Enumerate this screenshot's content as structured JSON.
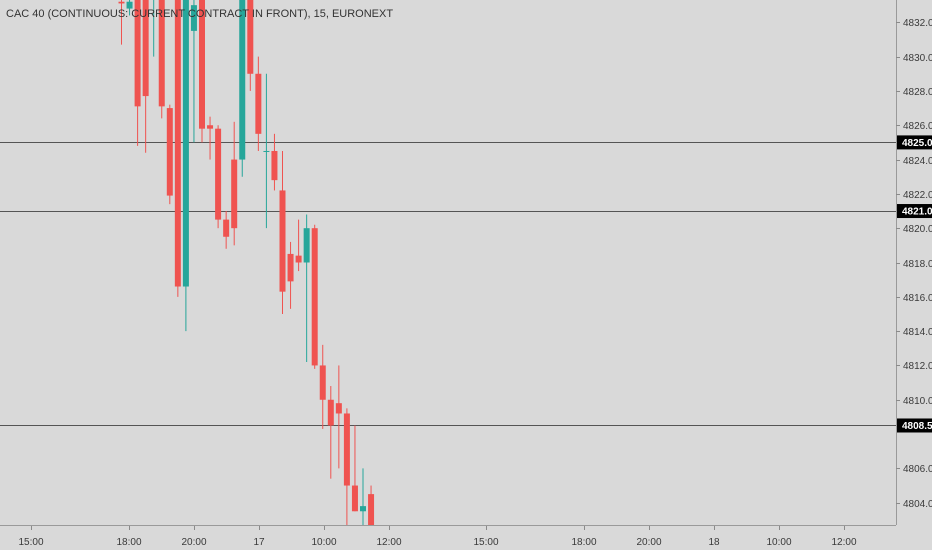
{
  "header": {
    "title": "CAC 40 (CONTINUOUS: CURRENT CONTRACT IN FRONT), 15, EURONEXT"
  },
  "colors": {
    "background": "#d9d9d9",
    "up": "#26a69a",
    "down": "#ef5350",
    "axis_text": "#3a3a3a",
    "hline": "#555555",
    "tag_bg": "#000000"
  },
  "chart_data": {
    "type": "candlestick",
    "title": "CAC 40 (CONTINUOUS: CURRENT CONTRACT IN FRONT), 15, EURONEXT",
    "xlabel": "",
    "ylabel": "",
    "ylim": [
      4802.7,
      4833.3
    ],
    "x_ticks": [
      "15:00",
      "18:00",
      "20:00",
      "17",
      "10:00",
      "12:00",
      "15:00",
      "18:00",
      "20:00",
      "18",
      "10:00",
      "12:00"
    ],
    "y_ticks": [
      4832.0,
      4830.0,
      4828.0,
      4826.0,
      4824.0,
      4822.0,
      4820.0,
      4818.0,
      4816.0,
      4814.0,
      4812.0,
      4810.0,
      4806.0,
      4804.0
    ],
    "horizontal_lines": [
      4825.0,
      4821.0,
      4808.5
    ],
    "price_tags": [
      "4825.0",
      "4821.0",
      "4808.5"
    ],
    "candles": [
      {
        "o": 4833.2,
        "h": 4833.5,
        "l": 4830.7,
        "c": 4833.1
      },
      {
        "o": 4832.8,
        "h": 4833.5,
        "l": 4832.4,
        "c": 4833.2
      },
      {
        "o": 4834.0,
        "h": 4835.0,
        "l": 4824.8,
        "c": 4827.1
      },
      {
        "o": 4834.0,
        "h": 4835.0,
        "l": 4824.4,
        "c": 4827.7
      },
      {
        "o": 4834.0,
        "h": 4835.0,
        "l": 4830.0,
        "c": 4834.0
      },
      {
        "o": 4834.0,
        "h": 4835.0,
        "l": 4826.4,
        "c": 4827.1
      },
      {
        "o": 4827.0,
        "h": 4827.2,
        "l": 4821.4,
        "c": 4821.9
      },
      {
        "o": 4834.0,
        "h": 4835.0,
        "l": 4816.0,
        "c": 4816.6
      },
      {
        "o": 4816.6,
        "h": 4834.0,
        "l": 4814.0,
        "c": 4834.0
      },
      {
        "o": 4831.5,
        "h": 4834.0,
        "l": 4825.0,
        "c": 4833.0
      },
      {
        "o": 4834.0,
        "h": 4834.0,
        "l": 4825.0,
        "c": 4825.8
      },
      {
        "o": 4826.0,
        "h": 4826.5,
        "l": 4824.0,
        "c": 4825.8
      },
      {
        "o": 4825.8,
        "h": 4826.0,
        "l": 4820.0,
        "c": 4820.5
      },
      {
        "o": 4820.5,
        "h": 4821.0,
        "l": 4818.8,
        "c": 4819.5
      },
      {
        "o": 4824.0,
        "h": 4826.2,
        "l": 4819.0,
        "c": 4820.0
      },
      {
        "o": 4824.0,
        "h": 4834.0,
        "l": 4823.0,
        "c": 4833.3
      },
      {
        "o": 4833.3,
        "h": 4834.0,
        "l": 4828.0,
        "c": 4829.0
      },
      {
        "o": 4829.0,
        "h": 4830.0,
        "l": 4824.5,
        "c": 4825.5
      },
      {
        "o": 4824.5,
        "h": 4829.0,
        "l": 4820.0,
        "c": 4824.5
      },
      {
        "o": 4824.5,
        "h": 4825.5,
        "l": 4822.2,
        "c": 4822.8
      },
      {
        "o": 4822.2,
        "h": 4824.5,
        "l": 4815.0,
        "c": 4816.3
      },
      {
        "o": 4818.5,
        "h": 4819.2,
        "l": 4815.3,
        "c": 4816.9
      },
      {
        "o": 4818.4,
        "h": 4820.5,
        "l": 4817.5,
        "c": 4818.0
      },
      {
        "o": 4818.0,
        "h": 4820.8,
        "l": 4812.2,
        "c": 4820.0
      },
      {
        "o": 4820.0,
        "h": 4820.2,
        "l": 4811.8,
        "c": 4812.0
      },
      {
        "o": 4812.0,
        "h": 4813.2,
        "l": 4808.3,
        "c": 4810.0
      },
      {
        "o": 4810.0,
        "h": 4810.8,
        "l": 4805.4,
        "c": 4808.5
      },
      {
        "o": 4809.8,
        "h": 4812.0,
        "l": 4806.0,
        "c": 4809.2
      },
      {
        "o": 4809.2,
        "h": 4809.5,
        "l": 4802.6,
        "c": 4805.0
      },
      {
        "o": 4805.0,
        "h": 4808.5,
        "l": 4803.5,
        "c": 4803.5
      },
      {
        "o": 4803.5,
        "h": 4806.0,
        "l": 4802.0,
        "c": 4803.8
      },
      {
        "o": 4804.5,
        "h": 4805.0,
        "l": 4802.0,
        "c": 4802.2
      }
    ]
  }
}
